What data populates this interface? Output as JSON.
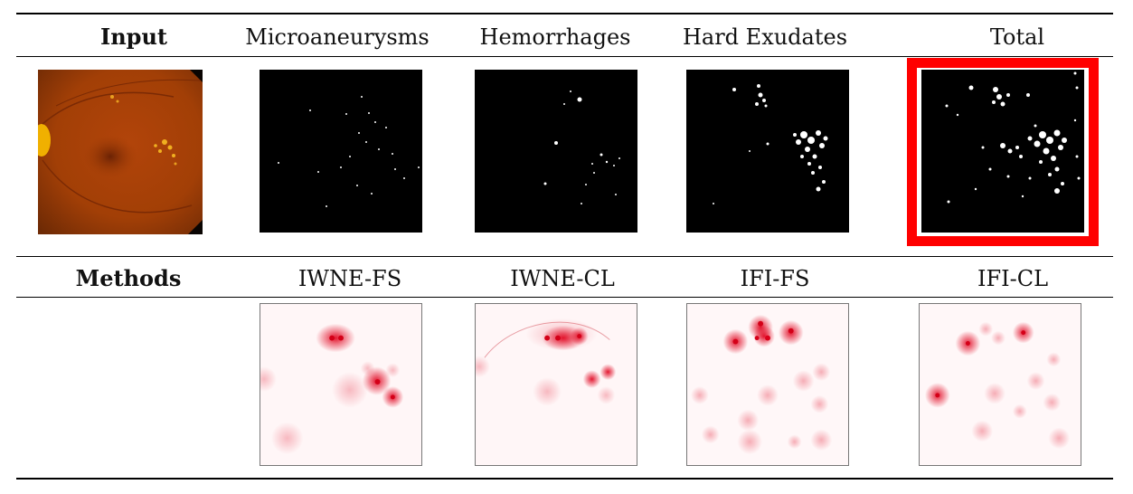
{
  "top_row": {
    "input_label": "Input",
    "columns": [
      "Microaneurysms",
      "Hemorrhages",
      "Hard Exudates",
      "Total"
    ]
  },
  "bottom_row": {
    "methods_label": "Methods",
    "columns": [
      "IWNE-FS",
      "IWNE-CL",
      "IFI-FS",
      "IFI-CL"
    ]
  },
  "highlight_color": "#ff0000",
  "heatmap_color": "#e0001b"
}
